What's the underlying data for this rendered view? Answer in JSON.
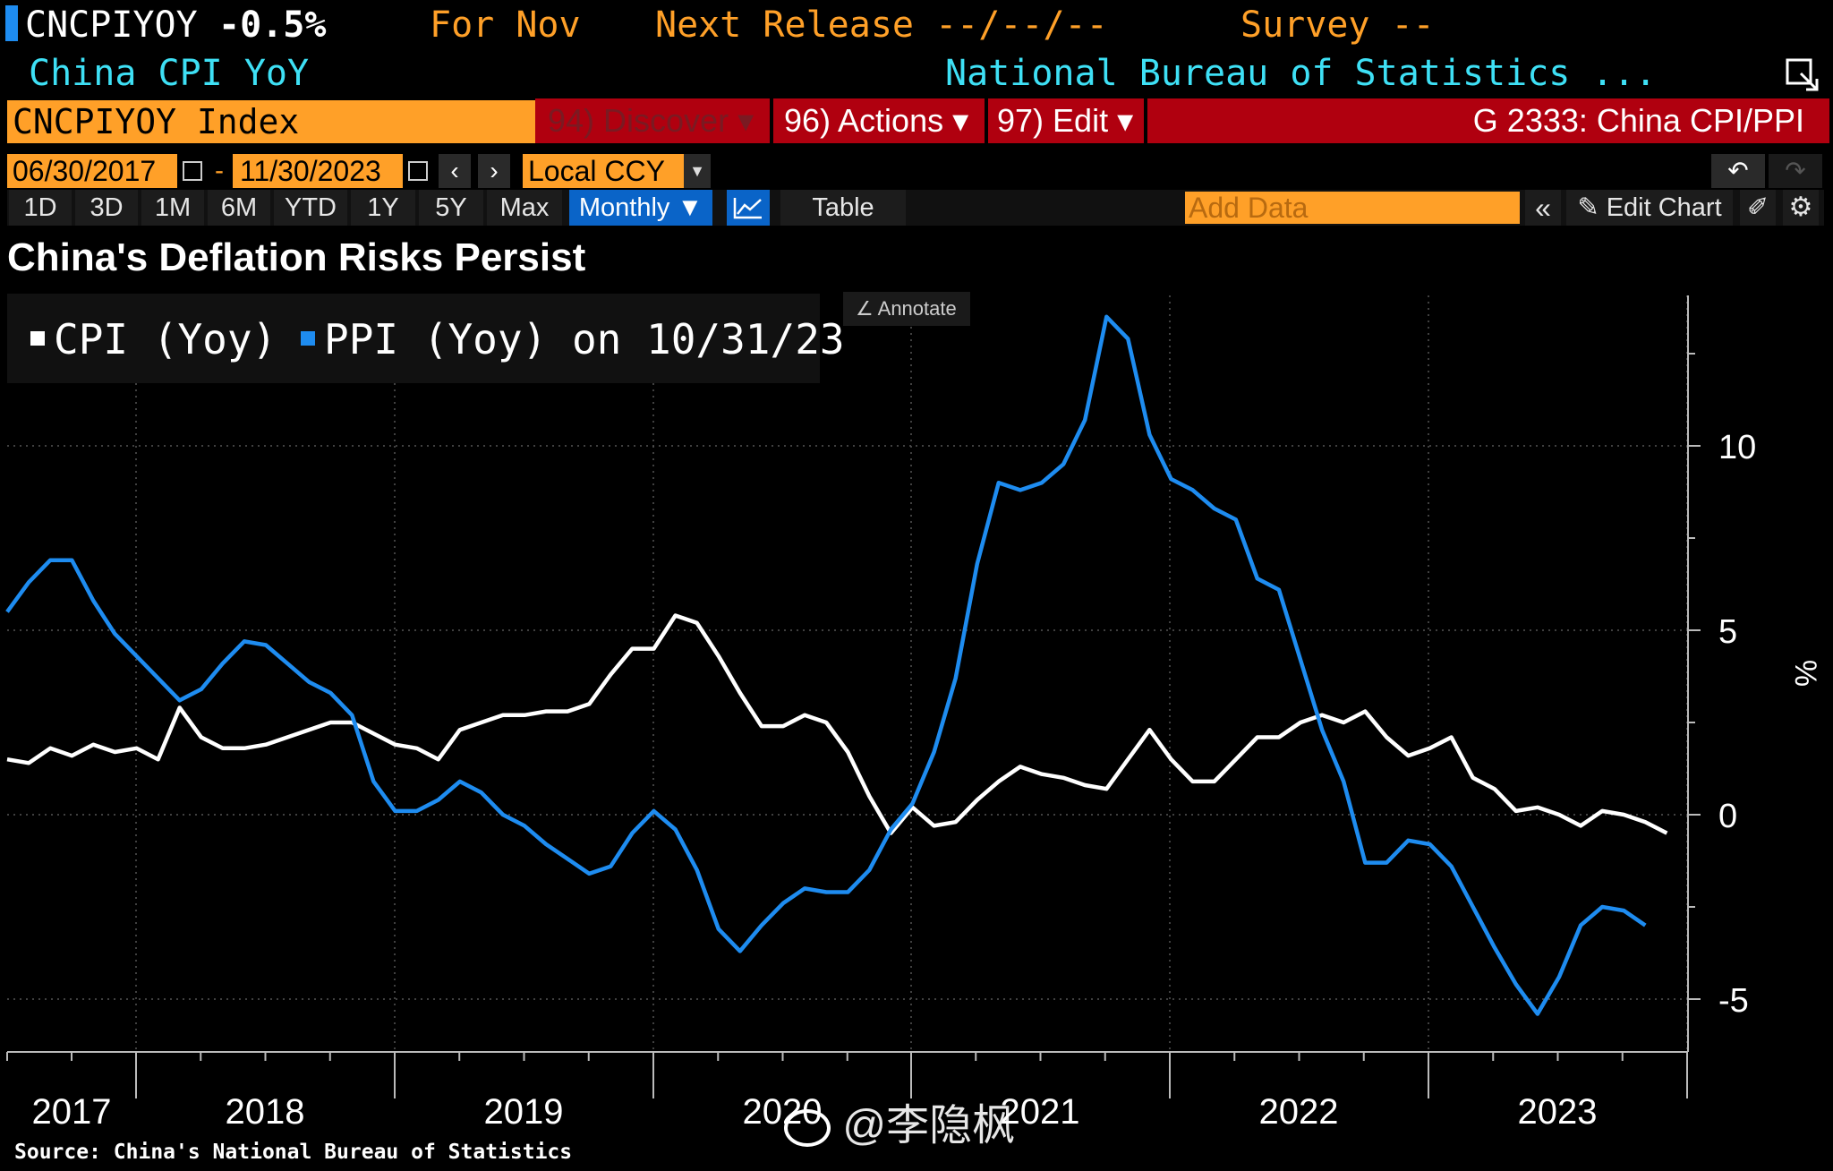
{
  "header": {
    "ticker": "CNCPIYOY",
    "last_value": "-0.5%",
    "period": "For Nov",
    "next_release": "Next Release --/--/--",
    "survey": "Survey --",
    "description": "China CPI YoY",
    "source_org": "National Bureau of Statistics ...",
    "security": "CNCPIYOY Index",
    "menu_discover": "94) Discover",
    "menu_actions": "96) Actions",
    "menu_edit": "97) Edit",
    "function_title": "G 2333: China CPI/PPI",
    "start_date": "06/30/2017",
    "end_date": "11/30/2023",
    "currency": "Local CCY",
    "ranges": [
      "1D",
      "3D",
      "1M",
      "6M",
      "YTD",
      "1Y",
      "5Y",
      "Max"
    ],
    "periodicity": "Monthly",
    "table_label": "Table",
    "add_data_placeholder": "Add Data",
    "edit_chart": "Edit Chart",
    "annotate": "Annotate",
    "source_note": "Source: China's National Bureau of Statistics",
    "watermark": "@李隐枫"
  },
  "colors": {
    "cpi": "#ffffff",
    "ppi": "#1e8cf0",
    "amber": "#ffa028",
    "red_bar": "#b0000f",
    "cyan": "#3ee0f5"
  },
  "chart_data": {
    "type": "line",
    "title": "China's Deflation Risks Persist",
    "ylabel": "%",
    "ylim": [
      -6.5,
      14
    ],
    "yticks": [
      -5,
      0,
      5,
      10
    ],
    "x_year_labels": [
      "2017",
      "2018",
      "2019",
      "2020",
      "2021",
      "2022",
      "2023"
    ],
    "x_start": "2017-06",
    "legend": [
      "CPI (Yoy)",
      "PPI (Yoy) on 10/31/23"
    ],
    "legend_position": "top-left",
    "grid": true,
    "series": [
      {
        "name": "CPI (Yoy)",
        "color": "#ffffff",
        "values": [
          1.5,
          1.4,
          1.8,
          1.6,
          1.9,
          1.7,
          1.8,
          1.5,
          2.9,
          2.1,
          1.8,
          1.8,
          1.9,
          2.1,
          2.3,
          2.5,
          2.5,
          2.2,
          1.9,
          1.8,
          1.5,
          2.3,
          2.5,
          2.7,
          2.7,
          2.8,
          2.8,
          3.0,
          3.8,
          4.5,
          4.5,
          5.4,
          5.2,
          4.3,
          3.3,
          2.4,
          2.4,
          2.7,
          2.5,
          1.7,
          0.5,
          -0.5,
          0.2,
          -0.3,
          -0.2,
          0.4,
          0.9,
          1.3,
          1.1,
          1.0,
          0.8,
          0.7,
          1.5,
          2.3,
          1.5,
          0.9,
          0.9,
          1.5,
          2.1,
          2.1,
          2.5,
          2.7,
          2.5,
          2.8,
          2.1,
          1.6,
          1.8,
          2.1,
          1.0,
          0.7,
          0.1,
          0.2,
          0.0,
          -0.3,
          0.1,
          0.0,
          -0.2,
          -0.5
        ]
      },
      {
        "name": "PPI (Yoy) on 10/31/23",
        "color": "#1e8cf0",
        "values": [
          5.5,
          6.3,
          6.9,
          6.9,
          5.8,
          4.9,
          4.3,
          3.7,
          3.1,
          3.4,
          4.1,
          4.7,
          4.6,
          4.1,
          3.6,
          3.3,
          2.7,
          0.9,
          0.1,
          0.1,
          0.4,
          0.9,
          0.6,
          0.0,
          -0.3,
          -0.8,
          -1.2,
          -1.6,
          -1.4,
          -0.5,
          0.1,
          -0.4,
          -1.5,
          -3.1,
          -3.7,
          -3.0,
          -2.4,
          -2.0,
          -2.1,
          -2.1,
          -1.5,
          -0.4,
          0.3,
          1.7,
          3.7,
          6.8,
          9.0,
          8.8,
          9.0,
          9.5,
          10.7,
          13.5,
          12.9,
          10.3,
          9.1,
          8.8,
          8.3,
          8.0,
          6.4,
          6.1,
          4.2,
          2.3,
          0.9,
          -1.3,
          -1.3,
          -0.7,
          -0.8,
          -1.4,
          -2.5,
          -3.6,
          -4.6,
          -5.4,
          -4.4,
          -3.0,
          -2.5,
          -2.6,
          -3.0
        ]
      }
    ]
  }
}
